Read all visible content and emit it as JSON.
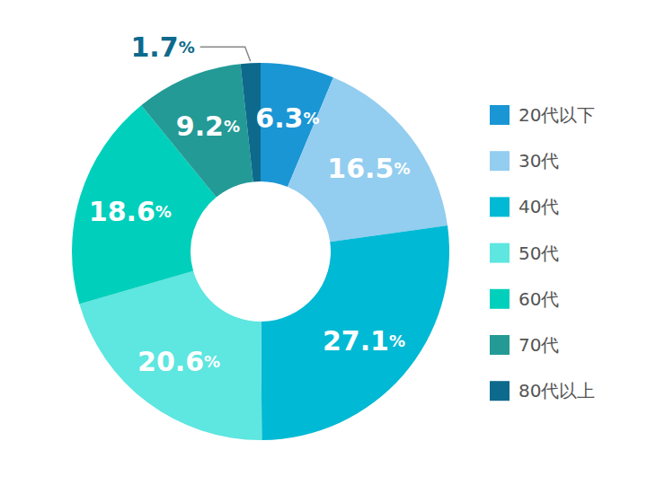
{
  "chart_data": {
    "type": "pie",
    "categories": [
      "20代以下",
      "30代",
      "40代",
      "50代",
      "60代",
      "70代",
      "80代以上"
    ],
    "values": [
      6.3,
      16.5,
      27.1,
      20.6,
      18.6,
      9.2,
      1.7
    ],
    "value_labels": [
      "6.3%",
      "16.5%",
      "27.1%",
      "20.6%",
      "18.6%",
      "9.2%",
      "1.7%"
    ],
    "colors": [
      "#1a96d4",
      "#93cdef",
      "#00b9d4",
      "#5ee6e0",
      "#00d0bb",
      "#239a96",
      "#0e6a8c"
    ],
    "data_labels": true,
    "legend": "right"
  }
}
